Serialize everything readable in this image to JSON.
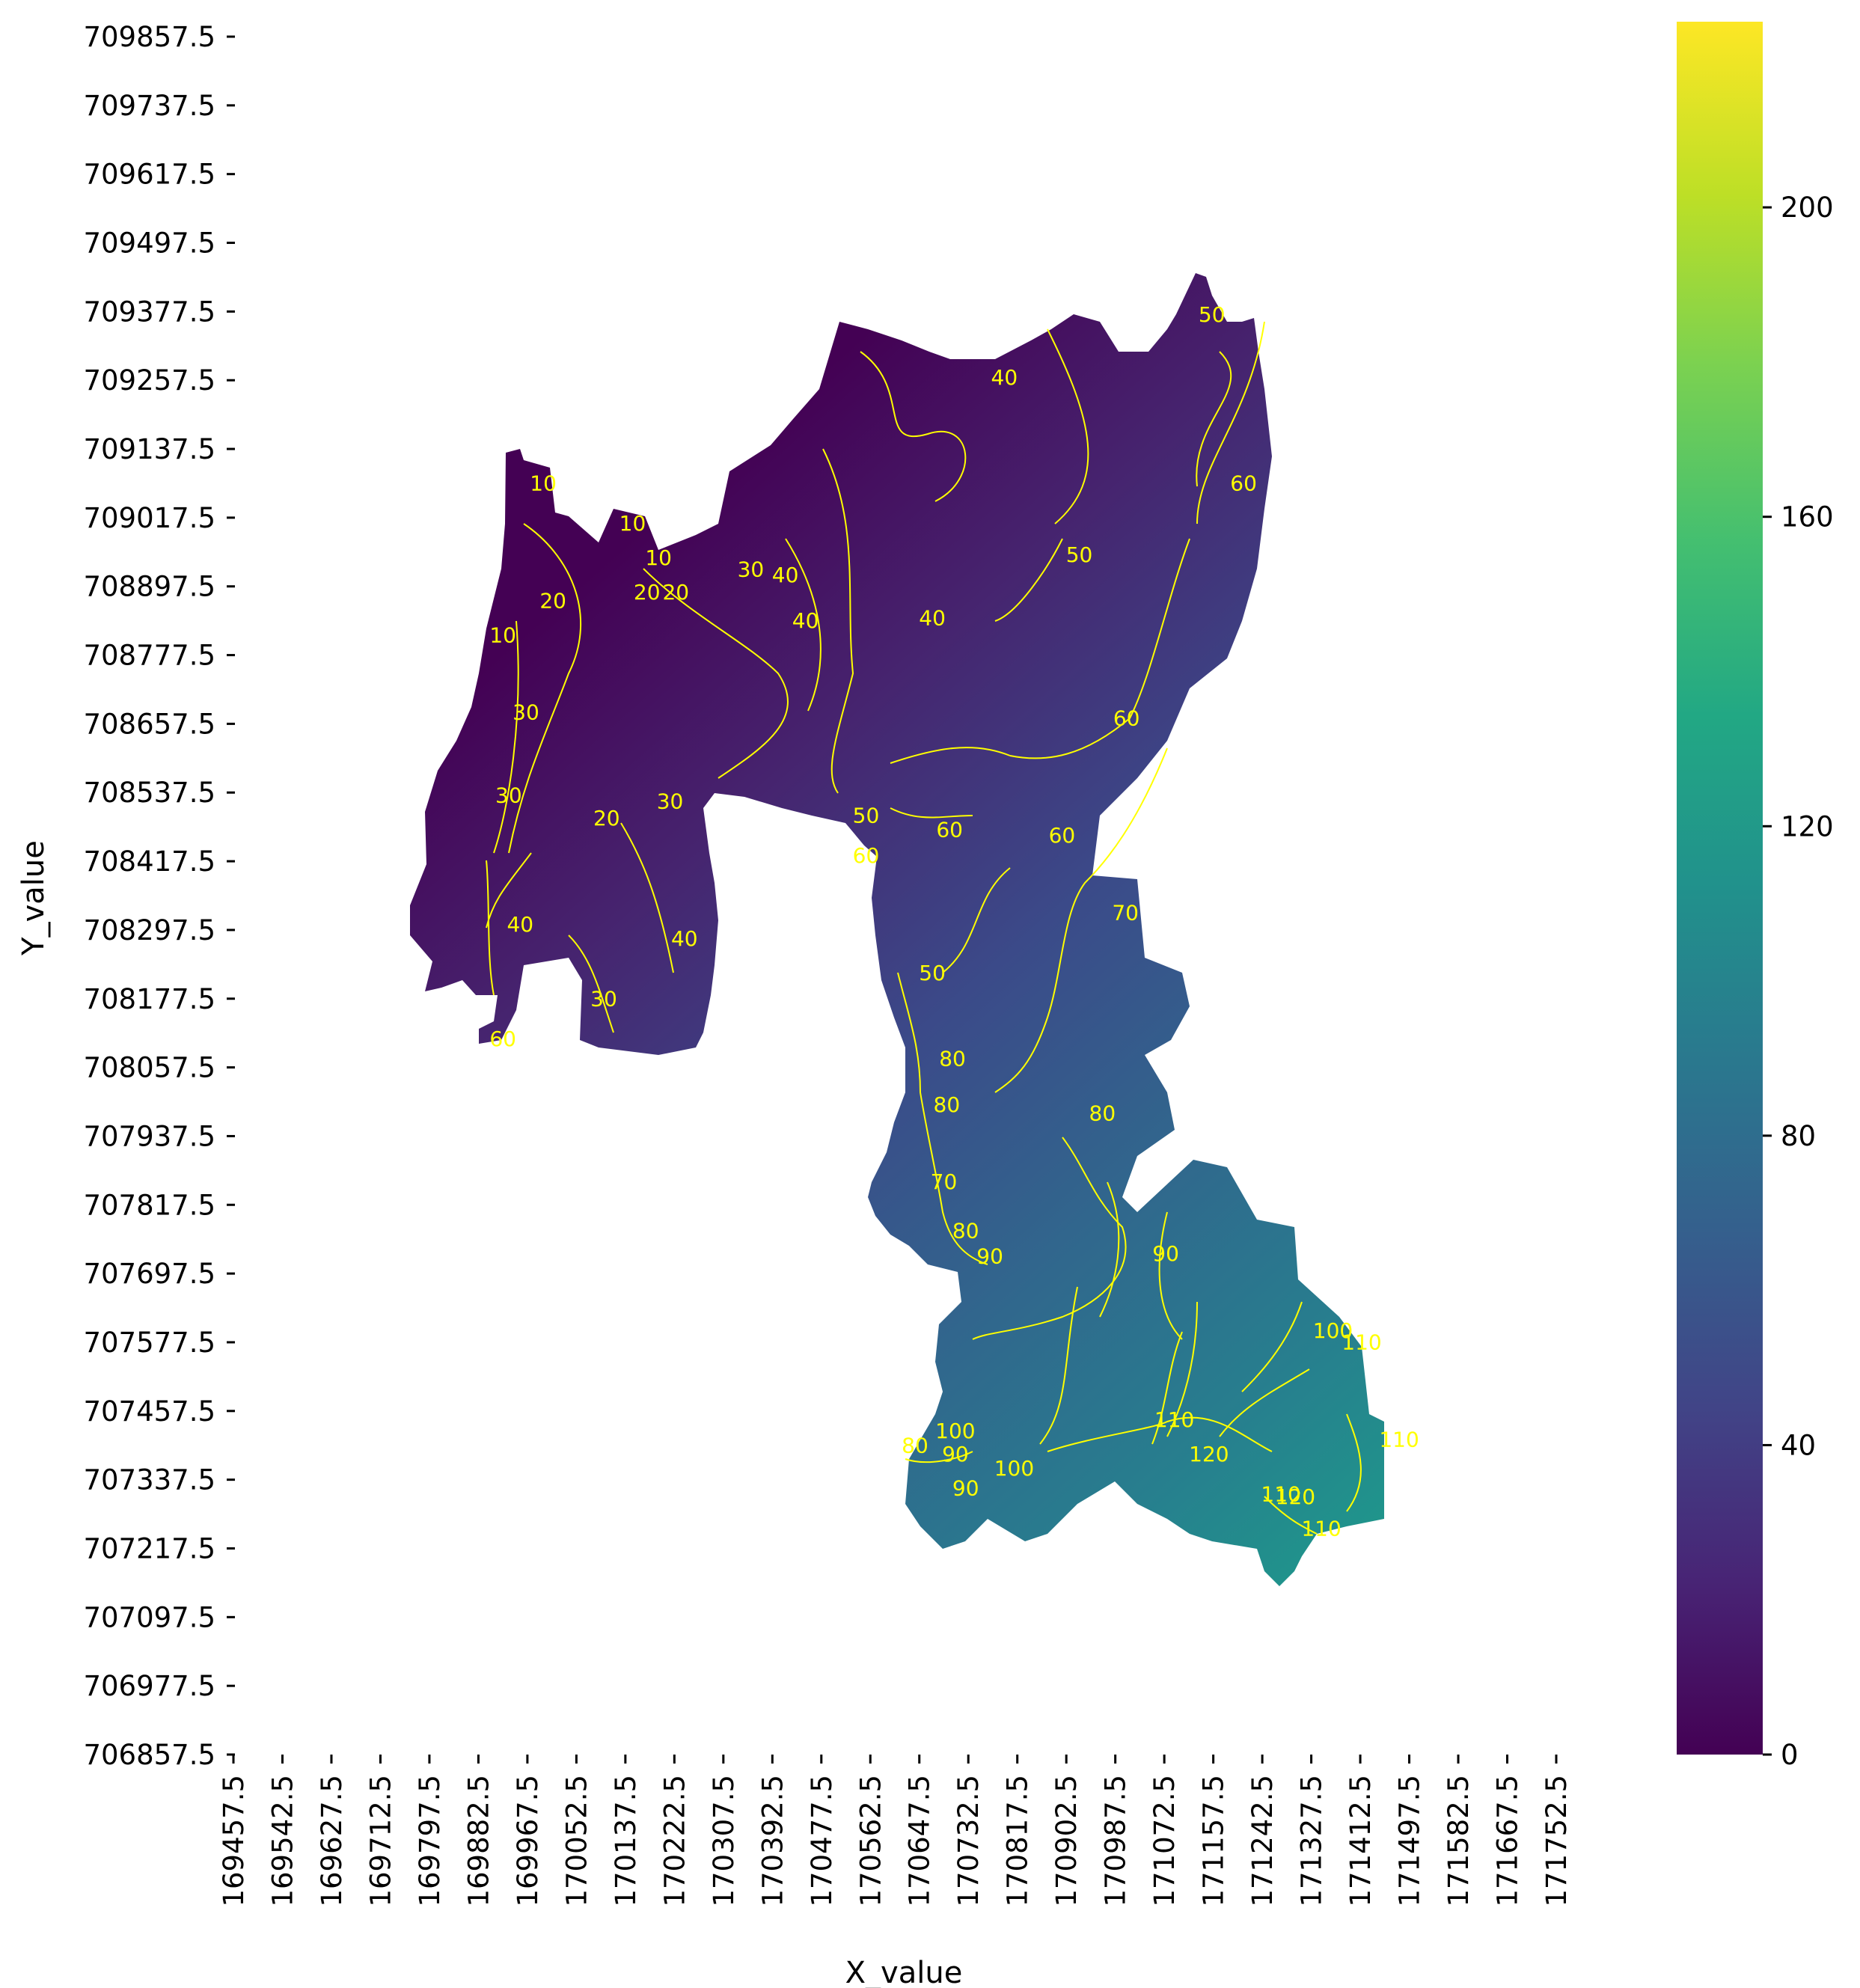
{
  "chart_data": {
    "type": "heatmap",
    "title": "",
    "xlabel": "X_value",
    "ylabel": "Y_value",
    "colormap": "viridis",
    "colorbar": {
      "range": [
        0,
        224
      ],
      "ticks": [
        0,
        40,
        80,
        120,
        160,
        200
      ],
      "tick_labels": [
        "0",
        "40",
        "80",
        "120",
        "160",
        "200"
      ]
    },
    "x_ticks": [
      "169457.5",
      "169542.5",
      "169627.5",
      "169712.5",
      "169797.5",
      "169882.5",
      "169967.5",
      "170052.5",
      "170137.5",
      "170222.5",
      "170307.5",
      "170392.5",
      "170477.5",
      "170562.5",
      "170647.5",
      "170732.5",
      "170817.5",
      "170902.5",
      "170987.5",
      "171072.5",
      "171157.5",
      "171242.5",
      "171327.5",
      "171412.5",
      "171497.5",
      "171582.5",
      "171667.5",
      "171752.5"
    ],
    "y_ticks": [
      "709857.5",
      "709737.5",
      "709617.5",
      "709497.5",
      "709377.5",
      "709257.5",
      "709137.5",
      "709017.5",
      "708897.5",
      "708777.5",
      "708657.5",
      "708537.5",
      "708417.5",
      "708297.5",
      "708177.5",
      "708057.5",
      "707937.5",
      "707817.5",
      "707697.5",
      "707577.5",
      "707457.5",
      "707337.5",
      "707217.5",
      "707097.5",
      "706977.5",
      "706857.5"
    ],
    "x_range": [
      169457.5,
      171752.5
    ],
    "y_range": [
      706857.5,
      709857.5
    ],
    "contour_levels": [
      10,
      20,
      30,
      40,
      50,
      60,
      70,
      80,
      90,
      100,
      110,
      120
    ],
    "contour_color": "#ffff00",
    "contour_labels": [
      {
        "text": "10",
        "x": 169995,
        "y": 709065
      },
      {
        "text": "10",
        "x": 170150,
        "y": 708995
      },
      {
        "text": "10",
        "x": 170195,
        "y": 708935
      },
      {
        "text": "10",
        "x": 169925,
        "y": 708800
      },
      {
        "text": "20",
        "x": 170012,
        "y": 708860
      },
      {
        "text": "20",
        "x": 170175,
        "y": 708875
      },
      {
        "text": "20",
        "x": 170225,
        "y": 708875
      },
      {
        "text": "20",
        "x": 170105,
        "y": 708480
      },
      {
        "text": "30",
        "x": 170355,
        "y": 708915
      },
      {
        "text": "30",
        "x": 169965,
        "y": 708665
      },
      {
        "text": "30",
        "x": 170215,
        "y": 708510
      },
      {
        "text": "30",
        "x": 169935,
        "y": 708520
      },
      {
        "text": "30",
        "x": 170100,
        "y": 708165
      },
      {
        "text": "40",
        "x": 170415,
        "y": 708905
      },
      {
        "text": "40",
        "x": 170450,
        "y": 708825
      },
      {
        "text": "40",
        "x": 170795,
        "y": 709250
      },
      {
        "text": "40",
        "x": 170670,
        "y": 708830
      },
      {
        "text": "40",
        "x": 170240,
        "y": 708270
      },
      {
        "text": "40",
        "x": 169955,
        "y": 708295
      },
      {
        "text": "50",
        "x": 170925,
        "y": 708940
      },
      {
        "text": "50",
        "x": 171155,
        "y": 709360
      },
      {
        "text": "50",
        "x": 170555,
        "y": 708485
      },
      {
        "text": "50",
        "x": 170670,
        "y": 708210
      },
      {
        "text": "60",
        "x": 171007,
        "y": 708655
      },
      {
        "text": "60",
        "x": 170700,
        "y": 708460
      },
      {
        "text": "60",
        "x": 170895,
        "y": 708450
      },
      {
        "text": "60",
        "x": 171210,
        "y": 709065
      },
      {
        "text": "60",
        "x": 170555,
        "y": 708415
      },
      {
        "text": "60",
        "x": 169925,
        "y": 708095
      },
      {
        "text": "70",
        "x": 171005,
        "y": 708315
      },
      {
        "text": "70",
        "x": 170690,
        "y": 707845
      },
      {
        "text": "80",
        "x": 170705,
        "y": 708060
      },
      {
        "text": "80",
        "x": 170965,
        "y": 707965
      },
      {
        "text": "80",
        "x": 170695,
        "y": 707980
      },
      {
        "text": "80",
        "x": 170728,
        "y": 707760
      },
      {
        "text": "80",
        "x": 170640,
        "y": 707385
      },
      {
        "text": "90",
        "x": 171075,
        "y": 707720
      },
      {
        "text": "90",
        "x": 170770,
        "y": 707715
      },
      {
        "text": "90",
        "x": 170710,
        "y": 707370
      },
      {
        "text": "90",
        "x": 170728,
        "y": 707310
      },
      {
        "text": "100",
        "x": 171365,
        "y": 707585
      },
      {
        "text": "100",
        "x": 170710,
        "y": 707410
      },
      {
        "text": "100",
        "x": 170812,
        "y": 707345
      },
      {
        "text": "110",
        "x": 171415,
        "y": 707565
      },
      {
        "text": "110",
        "x": 171090,
        "y": 707430
      },
      {
        "text": "110",
        "x": 171480,
        "y": 707395
      },
      {
        "text": "110",
        "x": 171345,
        "y": 707240
      },
      {
        "text": "110",
        "x": 171275,
        "y": 707300
      },
      {
        "text": "120",
        "x": 171300,
        "y": 707295
      },
      {
        "text": "120",
        "x": 171150,
        "y": 707370
      }
    ]
  }
}
